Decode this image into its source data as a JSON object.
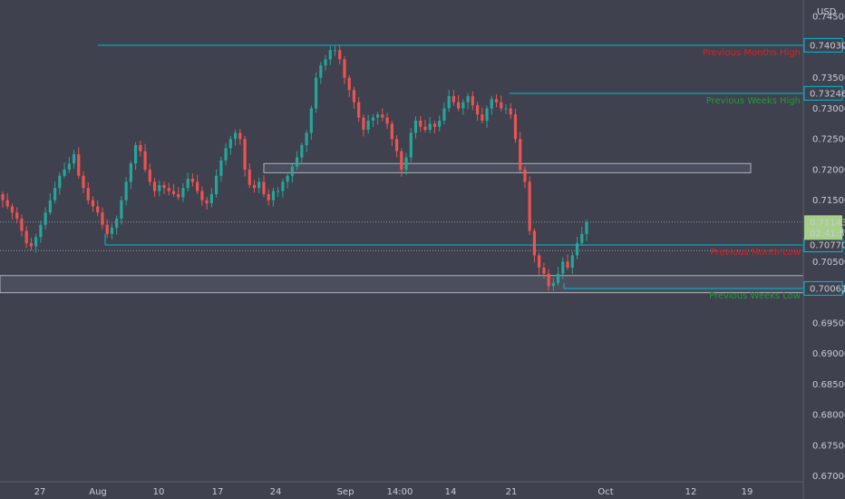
{
  "chart_data": {
    "type": "candlestick",
    "currency": "USD",
    "colors": {
      "background": "#3f414e",
      "up": "#26a69a",
      "down": "#ef5350",
      "level_line": "#00bcd4",
      "zone": "#4b4e5c",
      "zone_border": "#c9ccd6",
      "axis_text": "#c9ccd6",
      "label_red": "#e02020",
      "label_green": "#1e9c3a",
      "price_tag": "#a6cf8a"
    },
    "y_axis": {
      "range": [
        0.6695,
        0.7465
      ],
      "ticks": [
        "0.74500",
        "0.74000",
        "0.73500",
        "0.73000",
        "0.72500",
        "0.72000",
        "0.71500",
        "0.71000",
        "0.70500",
        "0.70000",
        "0.69500",
        "0.69000",
        "0.68500",
        "0.68000",
        "0.67500",
        "0.67000"
      ]
    },
    "x_axis": {
      "ticks": [
        "27",
        "Aug",
        "10",
        "17",
        "24",
        "Sep",
        "14:00",
        "14",
        "21",
        "Oct",
        "12",
        "19"
      ]
    },
    "levels": [
      {
        "value": 0.7403,
        "tag": "0.74030",
        "label": "Previous Months High",
        "label_color": "red"
      },
      {
        "value": 0.73246,
        "tag": "0.73246",
        "label": "Previous Weeks High",
        "label_color": "green"
      },
      {
        "value": 0.7077,
        "tag": "0.70770",
        "label": "Previous Month Low",
        "label_color": "red"
      },
      {
        "value": 0.70061,
        "tag": "0.70061",
        "label": "Previous Weeks Low",
        "label_color": "green"
      }
    ],
    "zones": [
      {
        "from": 0.7195,
        "to": 0.721
      },
      {
        "from": 0.6999,
        "to": 0.7027
      }
    ],
    "current": {
      "price": "0.71143",
      "countdown": "02:41:57",
      "value": 0.71143
    },
    "closes": [
      0.715,
      0.714,
      0.713,
      0.712,
      0.71,
      0.708,
      0.7075,
      0.709,
      0.711,
      0.713,
      0.715,
      0.717,
      0.719,
      0.72,
      0.721,
      0.7225,
      0.719,
      0.717,
      0.715,
      0.714,
      0.713,
      0.711,
      0.7095,
      0.7105,
      0.712,
      0.715,
      0.718,
      0.721,
      0.724,
      0.723,
      0.72,
      0.718,
      0.7165,
      0.7175,
      0.717,
      0.7165,
      0.716,
      0.7155,
      0.717,
      0.7185,
      0.718,
      0.7165,
      0.715,
      0.7145,
      0.716,
      0.719,
      0.7215,
      0.7235,
      0.725,
      0.726,
      0.725,
      0.72,
      0.7175,
      0.717,
      0.718,
      0.716,
      0.715,
      0.7165,
      0.7165,
      0.718,
      0.719,
      0.7205,
      0.722,
      0.724,
      0.726,
      0.73,
      0.735,
      0.737,
      0.738,
      0.7395,
      0.7395,
      0.738,
      0.735,
      0.733,
      0.731,
      0.7285,
      0.7265,
      0.728,
      0.7285,
      0.729,
      0.7285,
      0.7275,
      0.725,
      0.723,
      0.72,
      0.722,
      0.726,
      0.728,
      0.727,
      0.7265,
      0.7275,
      0.727,
      0.728,
      0.73,
      0.732,
      0.731,
      0.73,
      0.731,
      0.732,
      0.7305,
      0.729,
      0.728,
      0.73,
      0.7315,
      0.731,
      0.73,
      0.73,
      0.729,
      0.725,
      0.72,
      0.718,
      0.71,
      0.706,
      0.704,
      0.703,
      0.701,
      0.7015,
      0.703,
      0.705,
      0.704,
      0.706,
      0.708,
      0.7095,
      0.7114
    ]
  }
}
